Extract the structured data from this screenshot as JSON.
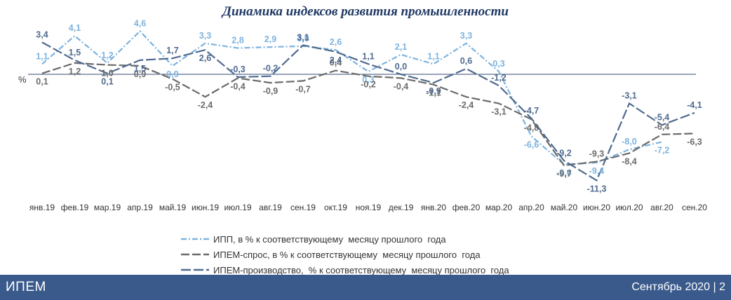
{
  "chart_data": {
    "type": "line",
    "title": "Динамика индексов развития промышленности",
    "ylabel": "%",
    "ylim": [
      -12,
      5
    ],
    "categories": [
      "янв.19",
      "фев.19",
      "мар.19",
      "апр.19",
      "май.19",
      "июн.19",
      "июл.19",
      "авг.19",
      "сен.19",
      "окт.19",
      "ноя.19",
      "дек.19",
      "янв.20",
      "фев.20",
      "мар.20",
      "апр.20",
      "май.20",
      "июн.20",
      "июл.20",
      "авг.20",
      "сен.20"
    ],
    "series": [
      {
        "name": "ИПП, в % к соответствующему  месяцу прошлого  года",
        "color": "#7db3df",
        "dash": "dashdot",
        "values": [
          1.1,
          4.1,
          1.2,
          4.6,
          0.9,
          3.3,
          2.8,
          2.9,
          3.0,
          2.6,
          0.3,
          2.1,
          1.1,
          3.3,
          0.3,
          -6.6,
          -9.6,
          -9.4,
          -8.0,
          -7.2,
          null
        ],
        "labels": [
          "1,1",
          "4,1",
          "1,2",
          "4,6",
          "0,9",
          "3,3",
          "2,8",
          "2,9",
          "3,0",
          "2,6",
          "0,3",
          "2,1",
          "1,1",
          "3,3",
          "0,3",
          "-6,6",
          "-9,6",
          "-9,4",
          "-8,0",
          "-7,2",
          ""
        ]
      },
      {
        "name": "ИПЕМ-спрос, в % к соответствующему  месяцу прошлого  года",
        "color": "#6b6b6b",
        "dash": "long",
        "values": [
          0.1,
          1.2,
          1.0,
          0.9,
          -0.5,
          -2.4,
          -0.4,
          -0.9,
          -0.7,
          0.4,
          -0.2,
          -0.4,
          -1.1,
          -2.4,
          -3.1,
          -4.8,
          -9.7,
          -9.3,
          -8.4,
          -6.4,
          -6.3
        ],
        "labels": [
          "0,1",
          "1,2",
          "1,0",
          "0,9",
          "-0,5",
          "-2,4",
          "-0,4",
          "-0,9",
          "-0,7",
          "0,4",
          "-0,2",
          "-0,4",
          "-1,1",
          "-2,4",
          "-3,1",
          "-4,8",
          "-9,7",
          "-9,3",
          "-8,4",
          "-6,4",
          "-6,3"
        ]
      },
      {
        "name": "ИПЕМ-производство,  % к соответствующему  месяцу прошлого  года",
        "color": "#4f6a8f",
        "dash": "solid",
        "values": [
          3.4,
          1.5,
          0.1,
          1.5,
          1.7,
          2.6,
          -0.3,
          -0.2,
          3.1,
          2.4,
          1.1,
          0.0,
          -0.9,
          0.6,
          -1.2,
          -4.7,
          -9.2,
          -11.3,
          -3.1,
          -5.4,
          -4.1
        ],
        "labels": [
          "3,4",
          "1,5",
          "0,1",
          "1,5",
          "1,7",
          "2,6",
          "-0,3",
          "-0,2",
          "3,1",
          "2,4",
          "1,1",
          "0,0",
          "-0,9",
          "0,6",
          "-1,2",
          "-4,7",
          "-9,2",
          "-11,3",
          "-3,1",
          "-5,4",
          "-4,1"
        ]
      }
    ]
  },
  "footer": {
    "org": "ИПЕМ",
    "date_page": "Сентябрь 2020 | 2"
  }
}
